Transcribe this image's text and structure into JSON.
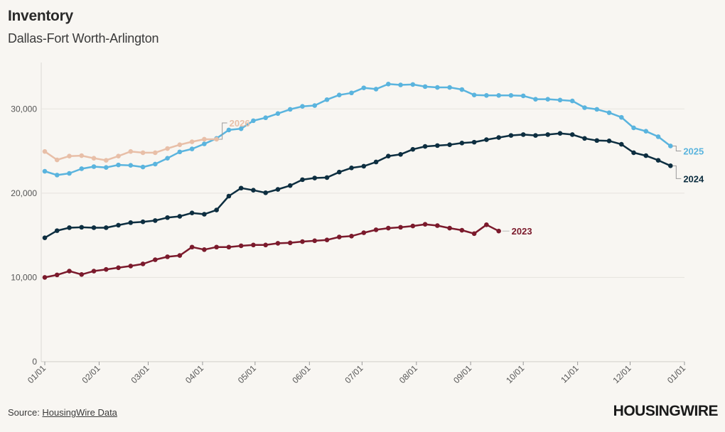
{
  "title": "Inventory",
  "subtitle": "Dallas-Fort Worth-Arlington",
  "source_prefix": "Source: ",
  "source_link": "HousingWire Data",
  "logo": "HOUSINGWIRE",
  "chart_data": {
    "type": "line",
    "title": "Inventory",
    "subtitle": "Dallas-Fort Worth-Arlington",
    "xlabel": "",
    "ylabel": "",
    "ylim": [
      0,
      35000
    ],
    "xlim_weeks": [
      0,
      52
    ],
    "grid": true,
    "y_ticks": [
      0,
      10000,
      20000,
      30000
    ],
    "y_tick_labels": [
      "0",
      "10,000",
      "20,000",
      "30,000"
    ],
    "x_tick_labels": [
      "01/01",
      "02/01",
      "03/01",
      "04/01",
      "05/01",
      "06/01",
      "07/01",
      "08/01",
      "09/01",
      "10/01",
      "11/01",
      "12/01",
      "01/01"
    ],
    "x_tick_weeks": [
      0,
      4.43,
      8.43,
      12.86,
      17.14,
      21.57,
      25.86,
      30.29,
      34.71,
      39.0,
      43.43,
      47.71,
      52.14
    ],
    "x_unit": "weeks since Jan 1",
    "series": [
      {
        "name": "2023",
        "color": "#7b1a2c",
        "values": [
          10000,
          10300,
          10750,
          10350,
          10750,
          10950,
          11150,
          11350,
          11600,
          12100,
          12450,
          12600,
          13600,
          13300,
          13600,
          13600,
          13750,
          13850,
          13850,
          14050,
          14100,
          14250,
          14350,
          14450,
          14800,
          14900,
          15300,
          15650,
          15850,
          15950,
          16100,
          16300,
          16150,
          15850,
          15600,
          15200,
          16250,
          15500
        ]
      },
      {
        "name": "2024",
        "color": "#0d2e40",
        "values": [
          14700,
          15550,
          15900,
          15950,
          15900,
          15900,
          16200,
          16500,
          16600,
          16750,
          17100,
          17250,
          17650,
          17500,
          18000,
          19650,
          20600,
          20350,
          20050,
          20450,
          20900,
          21600,
          21800,
          21850,
          22500,
          23000,
          23200,
          23700,
          24400,
          24600,
          25200,
          25550,
          25650,
          25750,
          25950,
          26050,
          26350,
          26600,
          26850,
          26950,
          26850,
          26950,
          27100,
          26950,
          26500,
          26250,
          26200,
          25800,
          24800,
          24450,
          23900,
          23250
        ]
      },
      {
        "name": "2025",
        "color": "#5ab4de",
        "values": [
          22600,
          22150,
          22350,
          22900,
          23150,
          23050,
          23350,
          23300,
          23100,
          23450,
          24150,
          24900,
          25250,
          25850,
          26500,
          27500,
          27650,
          28600,
          28950,
          29450,
          29950,
          30300,
          30400,
          31100,
          31650,
          31900,
          32500,
          32350,
          32950,
          32850,
          32900,
          32650,
          32550,
          32550,
          32300,
          31650,
          31600,
          31600,
          31600,
          31550,
          31150,
          31150,
          31050,
          30950,
          30150,
          29950,
          29550,
          29000,
          27750,
          27350,
          26700,
          25600
        ]
      },
      {
        "name": "2026",
        "color": "#e8bfa8",
        "values": [
          24950,
          23950,
          24400,
          24450,
          24150,
          23900,
          24400,
          24950,
          24800,
          24800,
          25300,
          25750,
          26100,
          26400,
          26400
        ]
      }
    ]
  }
}
